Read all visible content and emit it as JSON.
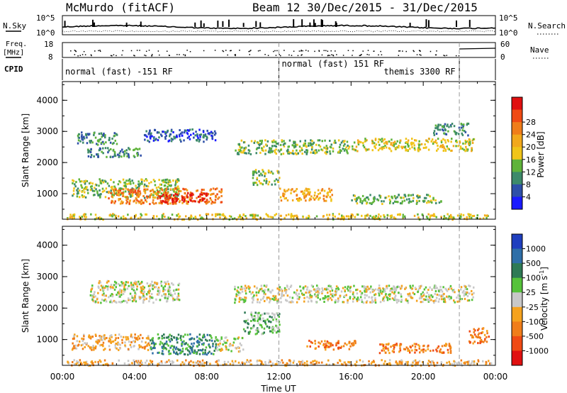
{
  "header": {
    "station": "McMurdo (fitACF)",
    "beam_and_dates": "Beam 12  30/Dec/2015 - 31/Dec/2015"
  },
  "status_panels": {
    "nsky_label": "N.Sky",
    "nsky_ticks": [
      "10^5",
      "10^0"
    ],
    "nsearch_label": "N.Search",
    "nsearch_ticks": [
      "10^5",
      "10^0"
    ],
    "freq_label_line1": "Freq.",
    "freq_label_line2": "[MHz]",
    "freq_ticks": [
      "18",
      "8"
    ],
    "nave_label": "Nave",
    "nave_ticks": [
      "60",
      "0"
    ],
    "cpid_label": "CPID",
    "cpid_segments": [
      {
        "label": "normal (fast) -151 RF",
        "start_hr": 0,
        "end_hr": 12.0
      },
      {
        "label": "normal (fast) 151 RF",
        "start_hr": 12.0,
        "end_hr": 22.0
      },
      {
        "label": "themis 3300 RF",
        "start_hr": 22.0,
        "end_hr": 22.1
      }
    ]
  },
  "colors": {
    "power_scale": [
      "#1a1aff",
      "#2e4fa8",
      "#3d8a6a",
      "#5fb33a",
      "#f0c419",
      "#f2a81c",
      "#f07d1a",
      "#f04a14",
      "#e01010"
    ],
    "velocity_scale": [
      "#1f3fbf",
      "#2f6fa8",
      "#2e7a55",
      "#56c23a",
      "#c8c8c8",
      "#f5a21e",
      "#f07d1a",
      "#f04a14",
      "#e01010"
    ],
    "axis": "#000000",
    "separator": "#999999"
  },
  "chart_data": [
    {
      "type": "heatmap",
      "title": "",
      "xlabel": "",
      "ylabel": "Slant Range [km]",
      "xlim_hr": [
        0,
        24
      ],
      "ylim": [
        180,
        4600
      ],
      "yticks": [
        1000,
        2000,
        3000,
        4000
      ],
      "colorbar_label": "Power [dB]",
      "colorbar_ticks": [
        "4",
        "8",
        "12",
        "16",
        "20",
        "24",
        "28"
      ],
      "regions": [
        {
          "x": [
            0.2,
            23.8
          ],
          "y": [
            200,
            380
          ],
          "level": 4
        },
        {
          "x": [
            0.5,
            6.5
          ],
          "y": [
            900,
            1500
          ],
          "level": 3
        },
        {
          "x": [
            2.5,
            8.8
          ],
          "y": [
            700,
            1200
          ],
          "level": 6
        },
        {
          "x": [
            5.2,
            8.0
          ],
          "y": [
            750,
            1050
          ],
          "level": 8
        },
        {
          "x": [
            0.8,
            3.0
          ],
          "y": [
            2600,
            3000
          ],
          "level": 2
        },
        {
          "x": [
            1.3,
            4.5
          ],
          "y": [
            2200,
            2500
          ],
          "level": 2
        },
        {
          "x": [
            4.5,
            8.5
          ],
          "y": [
            2700,
            3100
          ],
          "level": 1
        },
        {
          "x": [
            9.5,
            16.0
          ],
          "y": [
            2300,
            2750
          ],
          "level": 3
        },
        {
          "x": [
            16.0,
            22.8
          ],
          "y": [
            2400,
            2800
          ],
          "level": 4
        },
        {
          "x": [
            10.5,
            12.0
          ],
          "y": [
            1300,
            1800
          ],
          "level": 3
        },
        {
          "x": [
            12.0,
            15.0
          ],
          "y": [
            800,
            1200
          ],
          "level": 5
        },
        {
          "x": [
            16.0,
            21.0
          ],
          "y": [
            700,
            1000
          ],
          "level": 3
        },
        {
          "x": [
            20.5,
            22.5
          ],
          "y": [
            2900,
            3300
          ],
          "level": 2
        }
      ]
    },
    {
      "type": "heatmap",
      "title": "",
      "xlabel": "Time UT",
      "ylabel": "Slant Range [km]",
      "xlim_hr": [
        0,
        24
      ],
      "ylim": [
        180,
        4600
      ],
      "yticks": [
        1000,
        2000,
        3000,
        4000
      ],
      "xtick_labels": [
        "00:00",
        "04:00",
        "08:00",
        "12:00",
        "16:00",
        "20:00",
        "00:00"
      ],
      "colorbar_label": "Velocity [m s^-1]",
      "colorbar_ticks": [
        "-1000",
        "-500",
        "-100",
        "-25",
        "25",
        "100",
        "500",
        "1000"
      ],
      "regions": [
        {
          "x": [
            0.2,
            23.8
          ],
          "y": [
            200,
            380
          ],
          "level": 5
        },
        {
          "x": [
            0.5,
            4.8
          ],
          "y": [
            700,
            1200
          ],
          "level": 5
        },
        {
          "x": [
            4.8,
            8.5
          ],
          "y": [
            550,
            1200
          ],
          "level": 2
        },
        {
          "x": [
            8.5,
            10.0
          ],
          "y": [
            650,
            1100
          ],
          "level": 4
        },
        {
          "x": [
            1.5,
            6.5
          ],
          "y": [
            2200,
            2900
          ],
          "level": 4
        },
        {
          "x": [
            9.5,
            22.8
          ],
          "y": [
            2200,
            2750
          ],
          "level": 4
        },
        {
          "x": [
            13.5,
            16.2
          ],
          "y": [
            700,
            1000
          ],
          "level": 6
        },
        {
          "x": [
            17.5,
            21.5
          ],
          "y": [
            600,
            900
          ],
          "level": 6
        },
        {
          "x": [
            10.0,
            12.0
          ],
          "y": [
            1200,
            1900
          ],
          "level": 3
        },
        {
          "x": [
            22.5,
            23.6
          ],
          "y": [
            900,
            1400
          ],
          "level": 6
        }
      ]
    }
  ]
}
